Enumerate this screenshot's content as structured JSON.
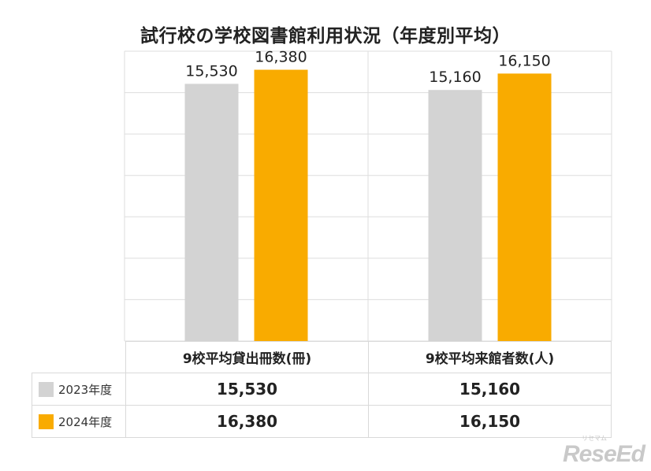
{
  "chart_data": {
    "type": "bar",
    "title": "試行校の学校図書館利用状況（年度別平均）",
    "categories": [
      "9校平均貸出冊数(冊)",
      "9校平均来館者数(人)"
    ],
    "series": [
      {
        "name": "2023年度",
        "values": [
          15530,
          15160
        ],
        "labels": [
          "15,530",
          "15,160"
        ],
        "color": "#d3d3d3"
      },
      {
        "name": "2024年度",
        "values": [
          16380,
          16150
        ],
        "labels": [
          "16,380",
          "16,150"
        ],
        "color": "#f9ab00"
      }
    ],
    "ylim": [
      0,
      17500
    ],
    "grid": true,
    "legend": "in table, left column",
    "data_table": true
  },
  "watermark": {
    "text": "ReseEd",
    "small_text": "リセマム"
  }
}
